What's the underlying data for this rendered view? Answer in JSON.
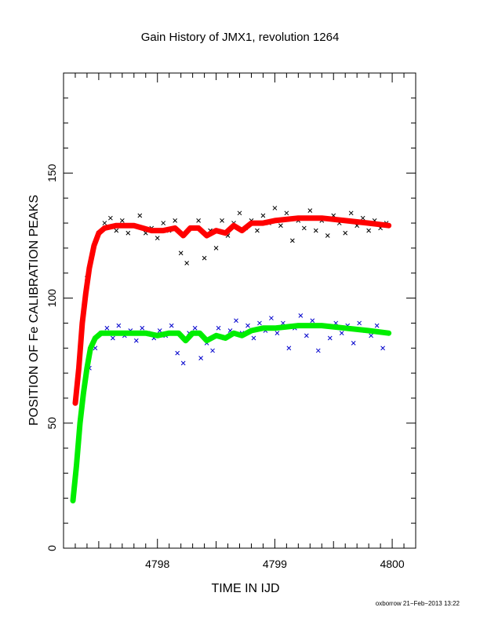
{
  "chart_data": {
    "type": "scatter",
    "title": "Gain History of JMX1, revolution 1264",
    "xlabel": "TIME IN IJD",
    "ylabel": "POSITION OF Fe CALIBRATION PEAKS",
    "footer": "oxborrow 21−Feb−2013 13:22",
    "xlim": [
      4797.2,
      4800.2
    ],
    "ylim": [
      0,
      190
    ],
    "x_ticks": [
      4798,
      4799,
      4800
    ],
    "y_ticks": [
      0,
      50,
      100,
      150
    ],
    "grid": false,
    "series": [
      {
        "color": "#000000",
        "marker": "x",
        "points": [
          [
            4797.4,
            108
          ],
          [
            4797.45,
            118
          ],
          [
            4797.5,
            126
          ],
          [
            4797.55,
            130
          ],
          [
            4797.6,
            132
          ],
          [
            4797.65,
            127
          ],
          [
            4797.7,
            131
          ],
          [
            4797.75,
            126
          ],
          [
            4797.8,
            129
          ],
          [
            4797.85,
            133
          ],
          [
            4797.9,
            126
          ],
          [
            4797.95,
            128
          ],
          [
            4798.0,
            124
          ],
          [
            4798.05,
            130
          ],
          [
            4798.1,
            127
          ],
          [
            4798.15,
            131
          ],
          [
            4798.2,
            118
          ],
          [
            4798.25,
            114
          ],
          [
            4798.3,
            128
          ],
          [
            4798.35,
            131
          ],
          [
            4798.4,
            116
          ],
          [
            4798.45,
            127
          ],
          [
            4798.5,
            120
          ],
          [
            4798.55,
            131
          ],
          [
            4798.6,
            125
          ],
          [
            4798.65,
            130
          ],
          [
            4798.7,
            134
          ],
          [
            4798.75,
            128
          ],
          [
            4798.8,
            131
          ],
          [
            4798.85,
            127
          ],
          [
            4798.9,
            133
          ],
          [
            4798.95,
            130
          ],
          [
            4799.0,
            136
          ],
          [
            4799.05,
            129
          ],
          [
            4799.1,
            134
          ],
          [
            4799.15,
            123
          ],
          [
            4799.2,
            131
          ],
          [
            4799.25,
            128
          ],
          [
            4799.3,
            135
          ],
          [
            4799.35,
            127
          ],
          [
            4799.4,
            131
          ],
          [
            4799.45,
            125
          ],
          [
            4799.5,
            133
          ],
          [
            4799.55,
            130
          ],
          [
            4799.6,
            126
          ],
          [
            4799.65,
            134
          ],
          [
            4799.7,
            129
          ],
          [
            4799.75,
            132
          ],
          [
            4799.8,
            127
          ],
          [
            4799.85,
            131
          ],
          [
            4799.9,
            128
          ],
          [
            4799.95,
            130
          ]
        ]
      },
      {
        "color": "#0000cc",
        "marker": "x",
        "points": [
          [
            4797.42,
            72
          ],
          [
            4797.47,
            80
          ],
          [
            4797.52,
            86
          ],
          [
            4797.57,
            88
          ],
          [
            4797.62,
            84
          ],
          [
            4797.67,
            89
          ],
          [
            4797.72,
            85
          ],
          [
            4797.77,
            87
          ],
          [
            4797.82,
            83
          ],
          [
            4797.87,
            88
          ],
          [
            4797.92,
            86
          ],
          [
            4797.97,
            84
          ],
          [
            4798.02,
            87
          ],
          [
            4798.07,
            85
          ],
          [
            4798.12,
            89
          ],
          [
            4798.17,
            78
          ],
          [
            4798.22,
            74
          ],
          [
            4798.27,
            86
          ],
          [
            4798.32,
            88
          ],
          [
            4798.37,
            76
          ],
          [
            4798.42,
            82
          ],
          [
            4798.47,
            79
          ],
          [
            4798.52,
            88
          ],
          [
            4798.57,
            84
          ],
          [
            4798.62,
            87
          ],
          [
            4798.67,
            91
          ],
          [
            4798.72,
            86
          ],
          [
            4798.77,
            89
          ],
          [
            4798.82,
            84
          ],
          [
            4798.87,
            90
          ],
          [
            4798.92,
            87
          ],
          [
            4798.97,
            92
          ],
          [
            4799.02,
            86
          ],
          [
            4799.07,
            90
          ],
          [
            4799.12,
            80
          ],
          [
            4799.17,
            88
          ],
          [
            4799.22,
            93
          ],
          [
            4799.27,
            85
          ],
          [
            4799.32,
            91
          ],
          [
            4799.37,
            79
          ],
          [
            4799.42,
            89
          ],
          [
            4799.47,
            84
          ],
          [
            4799.52,
            90
          ],
          [
            4799.57,
            86
          ],
          [
            4799.62,
            89
          ],
          [
            4799.67,
            82
          ],
          [
            4799.72,
            90
          ],
          [
            4799.77,
            87
          ],
          [
            4799.82,
            85
          ],
          [
            4799.87,
            89
          ],
          [
            4799.92,
            80
          ],
          [
            4799.96,
            86
          ]
        ]
      },
      {
        "color": "#ff0000",
        "marker": "fit",
        "points": [
          [
            4797.3,
            58
          ],
          [
            4797.33,
            72
          ],
          [
            4797.36,
            90
          ],
          [
            4797.39,
            102
          ],
          [
            4797.42,
            112
          ],
          [
            4797.46,
            121
          ],
          [
            4797.5,
            126
          ],
          [
            4797.55,
            128
          ],
          [
            4797.65,
            129
          ],
          [
            4797.8,
            129
          ],
          [
            4797.95,
            127
          ],
          [
            4798.05,
            127
          ],
          [
            4798.15,
            128
          ],
          [
            4798.22,
            125
          ],
          [
            4798.28,
            128
          ],
          [
            4798.35,
            128
          ],
          [
            4798.42,
            125
          ],
          [
            4798.5,
            127
          ],
          [
            4798.58,
            126
          ],
          [
            4798.65,
            129
          ],
          [
            4798.72,
            127
          ],
          [
            4798.8,
            130
          ],
          [
            4798.9,
            130
          ],
          [
            4799.0,
            131
          ],
          [
            4799.2,
            132
          ],
          [
            4799.4,
            132
          ],
          [
            4799.6,
            131
          ],
          [
            4799.8,
            130
          ],
          [
            4799.97,
            129
          ]
        ]
      },
      {
        "color": "#00ee00",
        "marker": "fit",
        "points": [
          [
            4797.28,
            19
          ],
          [
            4797.31,
            33
          ],
          [
            4797.34,
            50
          ],
          [
            4797.37,
            62
          ],
          [
            4797.4,
            72
          ],
          [
            4797.43,
            80
          ],
          [
            4797.47,
            84
          ],
          [
            4797.52,
            86
          ],
          [
            4797.6,
            86
          ],
          [
            4797.75,
            86
          ],
          [
            4797.9,
            86
          ],
          [
            4798.0,
            85
          ],
          [
            4798.1,
            86
          ],
          [
            4798.18,
            86
          ],
          [
            4798.24,
            83
          ],
          [
            4798.3,
            86
          ],
          [
            4798.36,
            86
          ],
          [
            4798.42,
            83
          ],
          [
            4798.5,
            85
          ],
          [
            4798.58,
            84
          ],
          [
            4798.65,
            86
          ],
          [
            4798.72,
            85
          ],
          [
            4798.8,
            87
          ],
          [
            4798.9,
            88
          ],
          [
            4799.0,
            88
          ],
          [
            4799.2,
            89
          ],
          [
            4799.4,
            89
          ],
          [
            4799.6,
            88
          ],
          [
            4799.8,
            87
          ],
          [
            4799.97,
            86
          ]
        ]
      }
    ]
  }
}
